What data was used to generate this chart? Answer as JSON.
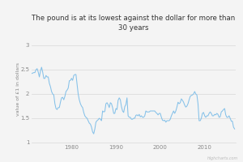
{
  "title": "The pound is at its lowest against the dollar for more than\n30 years",
  "ylabel": "value of £1 in dollars",
  "background_color": "#f4f4f4",
  "line_color": "#85c1e9",
  "line_width": 0.75,
  "xlim": [
    1971,
    2017
  ],
  "ylim": [
    1.0,
    3.2
  ],
  "yticks": [
    1.0,
    1.5,
    2.0,
    2.5,
    3.0
  ],
  "ytick_labels": [
    "1",
    "1.5",
    "2",
    "2.5",
    "3"
  ],
  "xticks": [
    1980,
    1990,
    2000,
    2010
  ],
  "watermark": "Highcharts.com",
  "data": [
    [
      1971.0,
      2.42
    ],
    [
      1971.25,
      2.43
    ],
    [
      1971.5,
      2.44
    ],
    [
      1971.75,
      2.44
    ],
    [
      1972.0,
      2.5
    ],
    [
      1972.25,
      2.52
    ],
    [
      1972.5,
      2.45
    ],
    [
      1972.75,
      2.35
    ],
    [
      1973.0,
      2.47
    ],
    [
      1973.25,
      2.55
    ],
    [
      1973.5,
      2.45
    ],
    [
      1973.75,
      2.32
    ],
    [
      1974.0,
      2.32
    ],
    [
      1974.25,
      2.38
    ],
    [
      1974.5,
      2.35
    ],
    [
      1974.75,
      2.35
    ],
    [
      1975.0,
      2.22
    ],
    [
      1975.25,
      2.15
    ],
    [
      1975.5,
      2.05
    ],
    [
      1975.75,
      2.0
    ],
    [
      1976.0,
      1.98
    ],
    [
      1976.25,
      1.8
    ],
    [
      1976.5,
      1.7
    ],
    [
      1976.75,
      1.68
    ],
    [
      1977.0,
      1.72
    ],
    [
      1977.25,
      1.72
    ],
    [
      1977.5,
      1.83
    ],
    [
      1977.75,
      1.92
    ],
    [
      1978.0,
      1.93
    ],
    [
      1978.25,
      1.88
    ],
    [
      1978.5,
      1.95
    ],
    [
      1978.75,
      2.05
    ],
    [
      1979.0,
      2.08
    ],
    [
      1979.25,
      2.12
    ],
    [
      1979.5,
      2.27
    ],
    [
      1979.75,
      2.28
    ],
    [
      1980.0,
      2.32
    ],
    [
      1980.25,
      2.28
    ],
    [
      1980.5,
      2.38
    ],
    [
      1980.75,
      2.4
    ],
    [
      1981.0,
      2.4
    ],
    [
      1981.25,
      2.2
    ],
    [
      1981.5,
      2.0
    ],
    [
      1981.75,
      1.88
    ],
    [
      1982.0,
      1.8
    ],
    [
      1982.25,
      1.75
    ],
    [
      1982.5,
      1.72
    ],
    [
      1982.75,
      1.62
    ],
    [
      1983.0,
      1.55
    ],
    [
      1983.25,
      1.52
    ],
    [
      1983.5,
      1.5
    ],
    [
      1983.75,
      1.45
    ],
    [
      1984.0,
      1.4
    ],
    [
      1984.25,
      1.38
    ],
    [
      1984.5,
      1.32
    ],
    [
      1984.75,
      1.22
    ],
    [
      1985.0,
      1.18
    ],
    [
      1985.25,
      1.28
    ],
    [
      1985.5,
      1.42
    ],
    [
      1985.75,
      1.45
    ],
    [
      1986.0,
      1.47
    ],
    [
      1986.25,
      1.5
    ],
    [
      1986.5,
      1.48
    ],
    [
      1986.75,
      1.45
    ],
    [
      1987.0,
      1.65
    ],
    [
      1987.25,
      1.63
    ],
    [
      1987.5,
      1.64
    ],
    [
      1987.75,
      1.8
    ],
    [
      1988.0,
      1.82
    ],
    [
      1988.25,
      1.78
    ],
    [
      1988.5,
      1.72
    ],
    [
      1988.75,
      1.82
    ],
    [
      1989.0,
      1.8
    ],
    [
      1989.25,
      1.72
    ],
    [
      1989.5,
      1.6
    ],
    [
      1989.75,
      1.6
    ],
    [
      1990.0,
      1.7
    ],
    [
      1990.25,
      1.68
    ],
    [
      1990.5,
      1.87
    ],
    [
      1990.75,
      1.92
    ],
    [
      1991.0,
      1.88
    ],
    [
      1991.25,
      1.74
    ],
    [
      1991.5,
      1.65
    ],
    [
      1991.75,
      1.62
    ],
    [
      1992.0,
      1.74
    ],
    [
      1992.25,
      1.78
    ],
    [
      1992.5,
      1.92
    ],
    [
      1992.75,
      1.55
    ],
    [
      1993.0,
      1.52
    ],
    [
      1993.25,
      1.52
    ],
    [
      1993.5,
      1.48
    ],
    [
      1993.75,
      1.48
    ],
    [
      1994.0,
      1.5
    ],
    [
      1994.25,
      1.5
    ],
    [
      1994.5,
      1.56
    ],
    [
      1994.75,
      1.57
    ],
    [
      1995.0,
      1.55
    ],
    [
      1995.25,
      1.58
    ],
    [
      1995.5,
      1.53
    ],
    [
      1995.75,
      1.55
    ],
    [
      1996.0,
      1.52
    ],
    [
      1996.25,
      1.52
    ],
    [
      1996.5,
      1.55
    ],
    [
      1996.75,
      1.65
    ],
    [
      1997.0,
      1.63
    ],
    [
      1997.25,
      1.63
    ],
    [
      1997.5,
      1.63
    ],
    [
      1997.75,
      1.65
    ],
    [
      1998.0,
      1.65
    ],
    [
      1998.25,
      1.65
    ],
    [
      1998.5,
      1.65
    ],
    [
      1998.75,
      1.65
    ],
    [
      1999.0,
      1.62
    ],
    [
      1999.25,
      1.6
    ],
    [
      1999.5,
      1.57
    ],
    [
      1999.75,
      1.6
    ],
    [
      2000.0,
      1.6
    ],
    [
      2000.25,
      1.52
    ],
    [
      2000.5,
      1.46
    ],
    [
      2000.75,
      1.45
    ],
    [
      2001.0,
      1.46
    ],
    [
      2001.25,
      1.42
    ],
    [
      2001.5,
      1.45
    ],
    [
      2001.75,
      1.45
    ],
    [
      2002.0,
      1.45
    ],
    [
      2002.25,
      1.48
    ],
    [
      2002.5,
      1.55
    ],
    [
      2002.75,
      1.6
    ],
    [
      2003.0,
      1.65
    ],
    [
      2003.25,
      1.6
    ],
    [
      2003.5,
      1.65
    ],
    [
      2003.75,
      1.73
    ],
    [
      2004.0,
      1.83
    ],
    [
      2004.25,
      1.8
    ],
    [
      2004.5,
      1.82
    ],
    [
      2004.75,
      1.9
    ],
    [
      2005.0,
      1.87
    ],
    [
      2005.25,
      1.83
    ],
    [
      2005.5,
      1.77
    ],
    [
      2005.75,
      1.73
    ],
    [
      2006.0,
      1.75
    ],
    [
      2006.25,
      1.8
    ],
    [
      2006.5,
      1.88
    ],
    [
      2006.75,
      1.95
    ],
    [
      2007.0,
      1.97
    ],
    [
      2007.25,
      1.98
    ],
    [
      2007.5,
      2.0
    ],
    [
      2007.75,
      2.05
    ],
    [
      2008.0,
      2.0
    ],
    [
      2008.25,
      1.98
    ],
    [
      2008.5,
      1.8
    ],
    [
      2008.75,
      1.45
    ],
    [
      2009.0,
      1.45
    ],
    [
      2009.25,
      1.5
    ],
    [
      2009.5,
      1.6
    ],
    [
      2009.75,
      1.62
    ],
    [
      2010.0,
      1.55
    ],
    [
      2010.25,
      1.52
    ],
    [
      2010.5,
      1.55
    ],
    [
      2010.75,
      1.55
    ],
    [
      2011.0,
      1.6
    ],
    [
      2011.25,
      1.63
    ],
    [
      2011.5,
      1.6
    ],
    [
      2011.75,
      1.55
    ],
    [
      2012.0,
      1.55
    ],
    [
      2012.25,
      1.58
    ],
    [
      2012.5,
      1.57
    ],
    [
      2012.75,
      1.6
    ],
    [
      2013.0,
      1.58
    ],
    [
      2013.25,
      1.52
    ],
    [
      2013.5,
      1.53
    ],
    [
      2013.75,
      1.63
    ],
    [
      2014.0,
      1.65
    ],
    [
      2014.25,
      1.68
    ],
    [
      2014.5,
      1.7
    ],
    [
      2014.75,
      1.57
    ],
    [
      2015.0,
      1.52
    ],
    [
      2015.25,
      1.52
    ],
    [
      2015.5,
      1.55
    ],
    [
      2015.75,
      1.5
    ],
    [
      2016.0,
      1.44
    ],
    [
      2016.25,
      1.44
    ],
    [
      2016.5,
      1.32
    ],
    [
      2016.75,
      1.28
    ]
  ]
}
